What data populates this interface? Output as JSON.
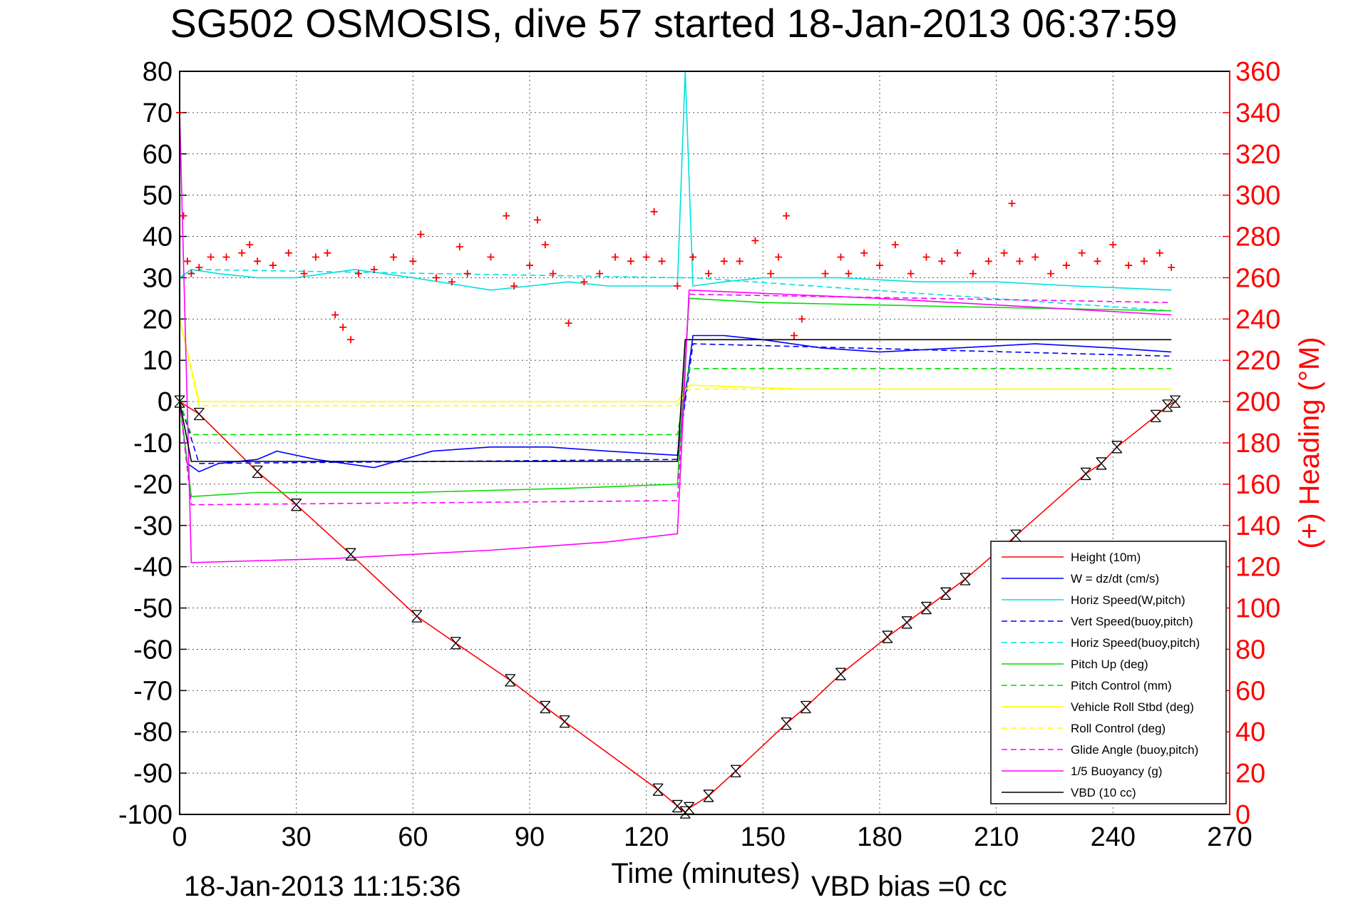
{
  "chart_data": {
    "type": "line",
    "title": "SG502 OSMOSIS, dive 57 started 18-Jan-2013 06:37:59",
    "xlabel": "Time (minutes)",
    "ylabel_right": "(+) Heading (°M)",
    "footer_left": "18-Jan-2013 11:15:36",
    "footer_right": "VBD bias =0 cc",
    "xlim": [
      0,
      270
    ],
    "ylim": [
      -100,
      80
    ],
    "ylim_right": [
      0,
      360
    ],
    "xticks": [
      "0",
      "30",
      "60",
      "90",
      "120",
      "150",
      "180",
      "210",
      "240",
      "270"
    ],
    "yticks": [
      "80",
      "70",
      "60",
      "50",
      "40",
      "30",
      "20",
      "10",
      "0",
      "-10",
      "-20",
      "-30",
      "-40",
      "-50",
      "-60",
      "-70",
      "-80",
      "-90",
      "-100"
    ],
    "yticks_right": [
      "360",
      "340",
      "320",
      "300",
      "280",
      "260",
      "240",
      "220",
      "200",
      "180",
      "160",
      "140",
      "120",
      "100",
      "80",
      "60",
      "40",
      "20",
      "0"
    ],
    "grid": true,
    "legend_position": "bottom-right",
    "series": [
      {
        "name": "Height (10m)",
        "color": "#ff0000",
        "style": "solid",
        "x": [
          0,
          5,
          20,
          30,
          44,
          61,
          71,
          85,
          94,
          99,
          123,
          128,
          130,
          131,
          136,
          143,
          156,
          161,
          170,
          182,
          187,
          192,
          197,
          202,
          215,
          233,
          237,
          241,
          251,
          254,
          256
        ],
        "y": [
          0,
          -3,
          -17,
          -25,
          -37,
          -52,
          -58.5,
          -67.5,
          -74,
          -77.5,
          -94,
          -98,
          -99.5,
          -98.5,
          -95.5,
          -89.5,
          -78,
          -74,
          -66,
          -57,
          -53.5,
          -50,
          -46.5,
          -43,
          -32.5,
          -17.5,
          -15,
          -11,
          -3.5,
          -1,
          0
        ]
      },
      {
        "name": "W = dz/dt (cm/s)",
        "color": "#0000ff",
        "style": "solid",
        "x": [
          0,
          2,
          5,
          10,
          20,
          25,
          35,
          50,
          65,
          80,
          95,
          110,
          128,
          132,
          140,
          150,
          165,
          180,
          200,
          220,
          240,
          255
        ],
        "y": [
          0,
          -15,
          -17,
          -15,
          -14,
          -12,
          -14,
          -16,
          -12,
          -11,
          -11,
          -12,
          -13,
          16,
          16,
          15,
          13,
          12,
          13,
          14,
          13,
          12
        ]
      },
      {
        "name": "Horiz Speed(W,pitch)",
        "color": "#00e0e0",
        "style": "solid",
        "x": [
          0,
          3,
          10,
          20,
          30,
          45,
          60,
          80,
          90,
          100,
          110,
          120,
          128,
          130,
          132,
          140,
          150,
          170,
          190,
          210,
          230,
          255
        ],
        "y": [
          30,
          32,
          31,
          30,
          30,
          32,
          30,
          27,
          28,
          29,
          28,
          28,
          28,
          80,
          28,
          29,
          30,
          30,
          29,
          29,
          28,
          27
        ]
      },
      {
        "name": "Vert Speed(buoy,pitch)",
        "color": "#0000ff",
        "style": "dashed",
        "x": [
          0,
          5,
          128,
          132,
          255
        ],
        "y": [
          0,
          -15,
          -14,
          14,
          11
        ]
      },
      {
        "name": "Horiz Speed(buoy,pitch)",
        "color": "#00e0e0",
        "style": "dashed",
        "x": [
          0,
          5,
          128,
          132,
          255
        ],
        "y": [
          30,
          32,
          30,
          30,
          22
        ]
      },
      {
        "name": "Pitch Up (deg)",
        "color": "#00dd00",
        "style": "solid",
        "x": [
          0,
          3,
          20,
          60,
          100,
          128,
          131,
          150,
          200,
          255
        ],
        "y": [
          0,
          -23,
          -22,
          -22,
          -21,
          -20,
          25,
          24,
          23,
          22
        ]
      },
      {
        "name": "Pitch Control (mm)",
        "color": "#00dd00",
        "style": "dashed",
        "x": [
          0,
          3,
          128,
          131,
          255
        ],
        "y": [
          0,
          -8,
          -8,
          8,
          8
        ]
      },
      {
        "name": "Vehicle Roll Stbd (deg)",
        "color": "#ffff00",
        "style": "solid",
        "x": [
          0,
          5,
          30,
          60,
          90,
          128,
          131,
          160,
          200,
          255
        ],
        "y": [
          20,
          0,
          0,
          0,
          0,
          0,
          4,
          3,
          3,
          3
        ]
      },
      {
        "name": "Roll Control (deg)",
        "color": "#ffff00",
        "style": "dashed",
        "x": [
          0,
          5,
          128,
          131,
          255
        ],
        "y": [
          20,
          -1,
          -1,
          3,
          3
        ]
      },
      {
        "name": "Glide Angle (buoy,pitch)",
        "color": "#ff00ff",
        "style": "dashed",
        "x": [
          0,
          3,
          128,
          131,
          255
        ],
        "y": [
          0,
          -25,
          -24,
          26,
          24
        ]
      },
      {
        "name": "1/5 Buoyancy (g)",
        "color": "#ff00ff",
        "style": "solid",
        "x": [
          0,
          3,
          40,
          80,
          110,
          128,
          131,
          180,
          255
        ],
        "y": [
          70,
          -39,
          -38,
          -36,
          -34,
          -32,
          27,
          25,
          21
        ]
      },
      {
        "name": "VBD (10 cc)",
        "color": "#000000",
        "style": "solid",
        "x": [
          0,
          3,
          128,
          130,
          255
        ],
        "y": [
          0,
          -14.5,
          -14.5,
          15,
          15
        ]
      }
    ],
    "heading_series": {
      "name": "(+) Heading",
      "color": "#ff0000",
      "marker": "+",
      "x": [
        0,
        1,
        2,
        3,
        5,
        8,
        12,
        16,
        18,
        20,
        24,
        28,
        32,
        35,
        38,
        40,
        42,
        44,
        46,
        50,
        55,
        60,
        62,
        66,
        70,
        72,
        74,
        80,
        84,
        86,
        90,
        92,
        94,
        96,
        100,
        104,
        108,
        112,
        116,
        120,
        122,
        124,
        128,
        132,
        136,
        140,
        144,
        148,
        152,
        154,
        156,
        158,
        160,
        166,
        170,
        172,
        176,
        180,
        184,
        188,
        192,
        196,
        200,
        204,
        208,
        212,
        214,
        216,
        220,
        224,
        228,
        232,
        236,
        240,
        244,
        248,
        252,
        255
      ],
      "y": [
        340,
        290,
        268,
        262,
        265,
        270,
        270,
        272,
        276,
        268,
        266,
        272,
        262,
        270,
        272,
        242,
        236,
        230,
        262,
        264,
        270,
        268,
        281,
        260,
        258,
        275,
        262,
        270,
        290,
        256,
        266,
        288,
        276,
        262,
        238,
        258,
        262,
        270,
        268,
        270,
        292,
        268,
        256,
        270,
        262,
        268,
        268,
        278,
        262,
        270,
        290,
        232,
        240,
        262,
        270,
        262,
        272,
        266,
        276,
        262,
        270,
        268,
        272,
        262,
        268,
        272,
        296,
        268,
        270,
        262,
        266,
        272,
        268,
        276,
        266,
        268,
        272,
        265
      ]
    }
  }
}
